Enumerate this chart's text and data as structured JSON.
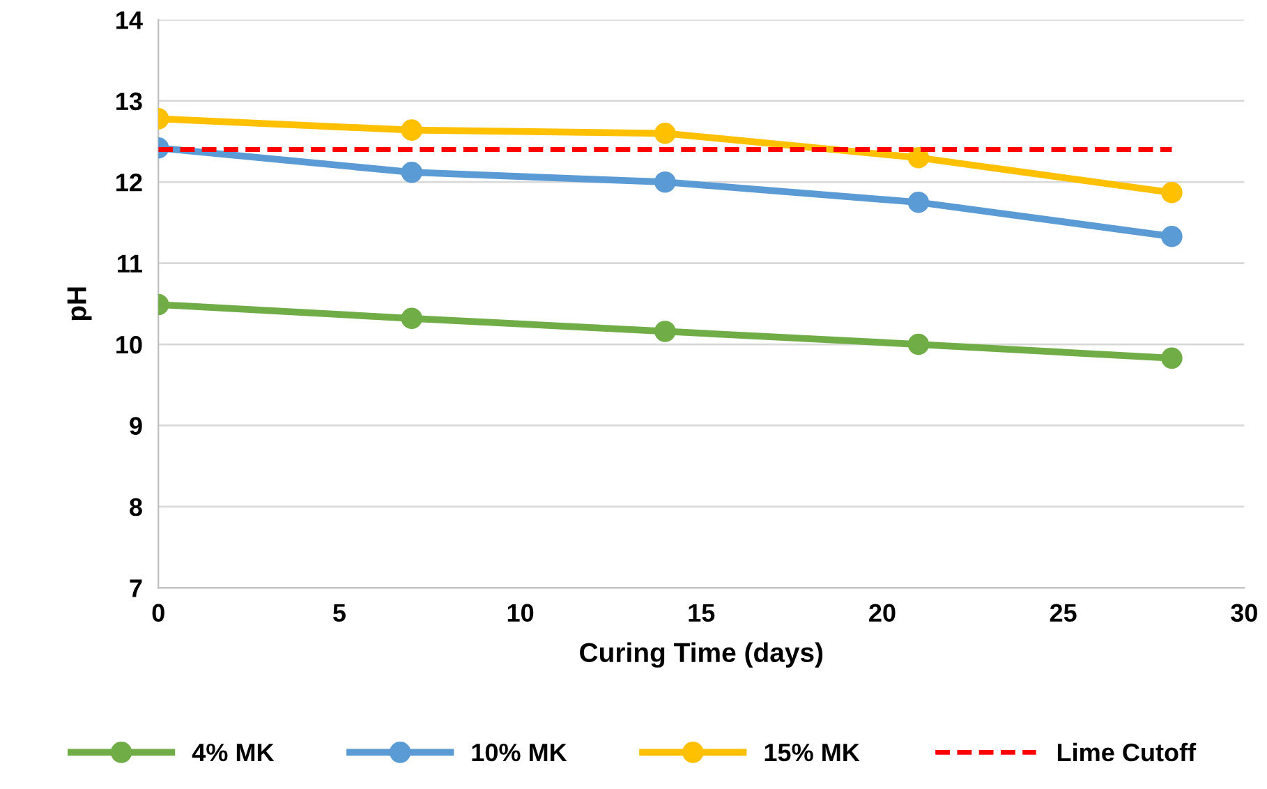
{
  "chart_data": {
    "type": "line",
    "xlabel": "Curing Time (days)",
    "ylabel": "pH",
    "x": [
      0,
      7,
      14,
      21,
      28
    ],
    "xlim": [
      0,
      30
    ],
    "xticks": [
      0,
      5,
      10,
      15,
      20,
      25,
      30
    ],
    "ylim": [
      7,
      14
    ],
    "yticks": [
      7,
      8,
      9,
      10,
      11,
      12,
      13,
      14
    ],
    "grid": "y",
    "legend": "bottom",
    "marker": "circle",
    "line_style": "solid",
    "series": [
      {
        "name": "4% MK",
        "color": "#70ad47",
        "values": [
          10.49,
          10.32,
          10.16,
          10.0,
          9.83
        ]
      },
      {
        "name": "10% MK",
        "color": "#5b9bd5",
        "values": [
          12.42,
          12.12,
          12.0,
          11.75,
          11.33
        ]
      },
      {
        "name": "15% MK",
        "color": "#ffc000",
        "values": [
          12.78,
          12.64,
          12.6,
          12.3,
          11.87
        ]
      },
      {
        "name": "Lime Cutoff",
        "color": "#ff0000",
        "x": [
          0,
          28
        ],
        "values": [
          12.4,
          12.4
        ],
        "marker": "none",
        "line_style": "dashed"
      }
    ]
  }
}
